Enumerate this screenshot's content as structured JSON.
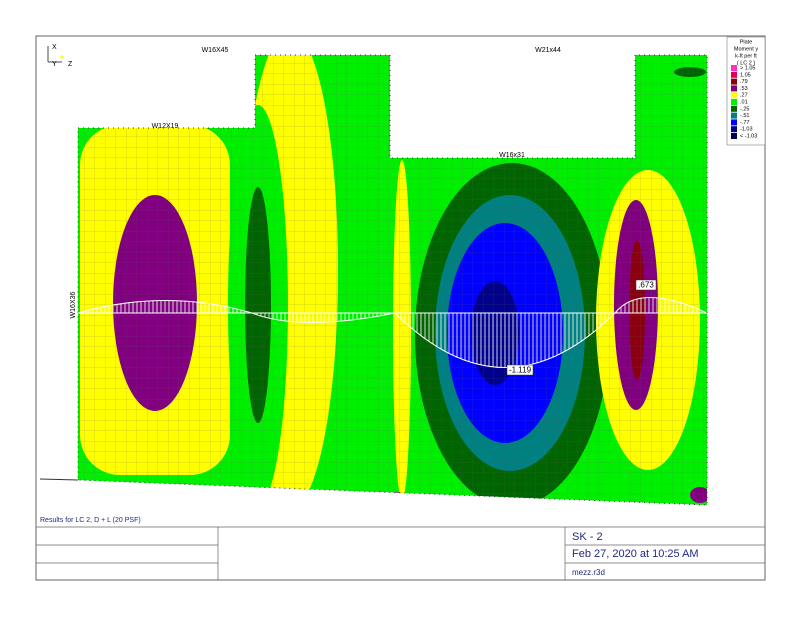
{
  "axes": {
    "x": "X",
    "y": "Y",
    "z": "Z"
  },
  "members": [
    "W16X45",
    "W21x44",
    "W12X19",
    "W16x31",
    "W16X36"
  ],
  "legend": {
    "title": [
      "Plate",
      "Moment y",
      "k-ft per ft",
      "( LC 2 )"
    ],
    "items": [
      {
        "label": "> 1.05",
        "color": "#ff2fc8"
      },
      {
        "label": "1.05",
        "color": "#e0005a"
      },
      {
        "label": ".79",
        "color": "#8b0010"
      },
      {
        "label": ".53",
        "color": "#800080"
      },
      {
        "label": ".27",
        "color": "#ffff00"
      },
      {
        "label": ".01",
        "color": "#00ee00"
      },
      {
        "label": "-.25",
        "color": "#006400"
      },
      {
        "label": "-.51",
        "color": "#008080"
      },
      {
        "label": "-.77",
        "color": "#0000ff"
      },
      {
        "label": "-1.03",
        "color": "#00008b"
      },
      {
        "label": "< -1.03",
        "color": "#000050"
      }
    ]
  },
  "annotations": [
    ".673",
    "-1.119"
  ],
  "results_note": "Results for LC 2, D + L (20 PSF)",
  "title_block": {
    "sheet": "SK - 2",
    "date": "Feb 27, 2020 at 10:25 AM",
    "file": "mezz.r3d"
  }
}
